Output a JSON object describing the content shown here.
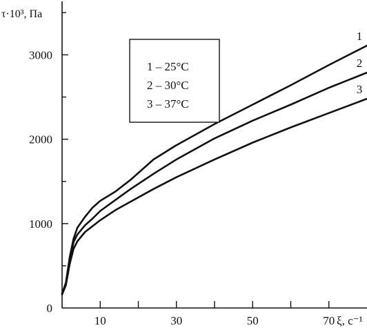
{
  "chart_data": {
    "type": "line",
    "ylabel": "τ·10³, Па",
    "xlabel": "ξ, с⁻¹",
    "xlim": [
      0,
      80
    ],
    "ylim": [
      0,
      3650
    ],
    "x_ticks_major": [
      10,
      30,
      50,
      70
    ],
    "x_ticks_minor": [
      20,
      40,
      60
    ],
    "y_ticks": [
      0,
      1000,
      2000,
      3000
    ],
    "y_ticks_minor": [
      500,
      1500,
      2500,
      3500
    ],
    "x_tick_labels": [
      "10",
      "30",
      "50",
      "70"
    ],
    "y_tick_labels": [
      "0",
      "1000",
      "2000",
      "3000"
    ],
    "legend": {
      "placement": "top-center",
      "entries": [
        "1 – 25°C",
        "2 – 30°C",
        "3 – 37°C"
      ]
    },
    "series": [
      {
        "name": "1",
        "x": [
          0,
          1,
          2,
          3,
          4,
          6,
          8,
          10,
          14,
          18,
          24,
          30,
          40,
          50,
          60,
          70,
          80
        ],
        "y": [
          170,
          300,
          600,
          820,
          950,
          1080,
          1190,
          1270,
          1380,
          1520,
          1760,
          1930,
          2180,
          2410,
          2640,
          2880,
          3110
        ]
      },
      {
        "name": "2",
        "x": [
          0,
          1,
          2,
          3,
          4,
          6,
          8,
          10,
          14,
          18,
          24,
          30,
          40,
          50,
          60,
          70,
          80
        ],
        "y": [
          160,
          280,
          560,
          780,
          870,
          980,
          1060,
          1150,
          1280,
          1410,
          1590,
          1760,
          2010,
          2220,
          2410,
          2610,
          2790
        ]
      },
      {
        "name": "3",
        "x": [
          0,
          1,
          2,
          3,
          4,
          6,
          8,
          10,
          14,
          18,
          24,
          30,
          40,
          50,
          60,
          70,
          80
        ],
        "y": [
          160,
          270,
          520,
          700,
          790,
          900,
          970,
          1040,
          1160,
          1260,
          1410,
          1550,
          1760,
          1960,
          2140,
          2310,
          2480
        ]
      }
    ]
  }
}
